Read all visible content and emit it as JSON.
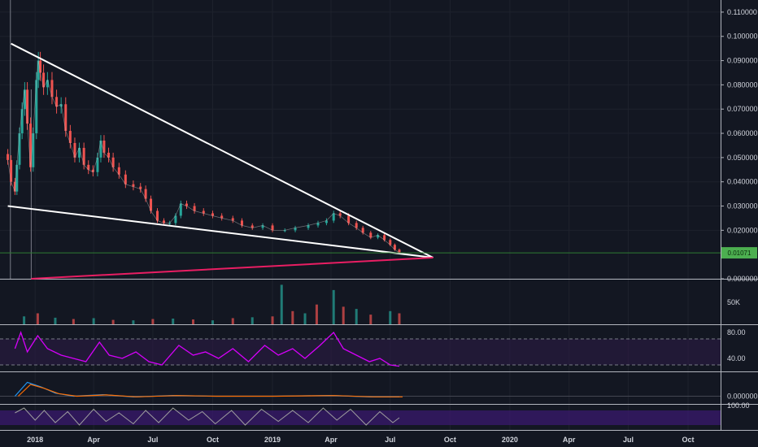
{
  "colors": {
    "background": "#131722",
    "grid": "#1e222d",
    "pane_border": "#b2b5be",
    "axis_text": "#d1d4dc",
    "candle_up": "#26a69a",
    "candle_down": "#ef5350",
    "trendline": "#ffffff",
    "support_line": "#e91e63",
    "price_marker": "#4caf50",
    "price_line": "#2e7d32",
    "rsi_line": "#d500f9",
    "rsi_band": "#2b1a45",
    "lower_band": "#3a1a6e",
    "macd_line": "#2196f3",
    "signal_line": "#ff6d00",
    "stoch_line": "#9e9e9e"
  },
  "chart_data": [
    {
      "type": "candlestick",
      "pane": "price",
      "y_ticks": [
        "0.110000",
        "0.100000",
        "0.090000",
        "0.080000",
        "0.070000",
        "0.060000",
        "0.050000",
        "0.040000",
        "0.030000",
        "0.020000",
        "0.000000"
      ],
      "ylim": [
        0,
        0.115
      ],
      "current_price_label": "0.01071",
      "current_price": 0.0107,
      "x_ticks": [
        "2018",
        "Apr",
        "Jul",
        "Oct",
        "2019",
        "Apr",
        "Jul",
        "Oct",
        "2020",
        "Apr",
        "Jul",
        "Oct"
      ],
      "series": [
        {
          "kind": "close",
          "points": [
            [
              "2017-11-20",
              0.049
            ],
            [
              "2017-11-25",
              0.04
            ],
            [
              "2017-12-01",
              0.036
            ],
            [
              "2017-12-04",
              0.047
            ],
            [
              "2017-12-08",
              0.06
            ],
            [
              "2017-12-12",
              0.07
            ],
            [
              "2017-12-16",
              0.078
            ],
            [
              "2017-12-20",
              0.064
            ],
            [
              "2017-12-25",
              0.046
            ],
            [
              "2017-12-29",
              0.06
            ],
            [
              "2018-01-03",
              0.082
            ],
            [
              "2018-01-06",
              0.09
            ],
            [
              "2018-01-09",
              0.085
            ],
            [
              "2018-01-14",
              0.079
            ],
            [
              "2018-01-20",
              0.082
            ],
            [
              "2018-01-27",
              0.075
            ],
            [
              "2018-02-03",
              0.071
            ],
            [
              "2018-02-10",
              0.072
            ],
            [
              "2018-02-17",
              0.061
            ],
            [
              "2018-02-24",
              0.056
            ],
            [
              "2018-03-03",
              0.05
            ],
            [
              "2018-03-10",
              0.054
            ],
            [
              "2018-03-17",
              0.047
            ],
            [
              "2018-03-24",
              0.045
            ],
            [
              "2018-03-31",
              0.044
            ],
            [
              "2018-04-07",
              0.05
            ],
            [
              "2018-04-12",
              0.057
            ],
            [
              "2018-04-17",
              0.052
            ],
            [
              "2018-04-24",
              0.05
            ],
            [
              "2018-05-01",
              0.046
            ],
            [
              "2018-05-10",
              0.043
            ],
            [
              "2018-05-20",
              0.039
            ],
            [
              "2018-06-01",
              0.038
            ],
            [
              "2018-06-12",
              0.037
            ],
            [
              "2018-06-20",
              0.033
            ],
            [
              "2018-06-28",
              0.028
            ],
            [
              "2018-07-08",
              0.024
            ],
            [
              "2018-07-18",
              0.023
            ],
            [
              "2018-07-27",
              0.023
            ],
            [
              "2018-08-05",
              0.026
            ],
            [
              "2018-08-13",
              0.031
            ],
            [
              "2018-08-22",
              0.03
            ],
            [
              "2018-09-03",
              0.028
            ],
            [
              "2018-09-17",
              0.027
            ],
            [
              "2018-10-01",
              0.026
            ],
            [
              "2018-10-15",
              0.025
            ],
            [
              "2018-11-01",
              0.024
            ],
            [
              "2018-11-15",
              0.022
            ],
            [
              "2018-12-01",
              0.021
            ],
            [
              "2018-12-17",
              0.022
            ],
            [
              "2019-01-01",
              0.02
            ],
            [
              "2019-01-20",
              0.02
            ],
            [
              "2019-02-05",
              0.021
            ],
            [
              "2019-02-25",
              0.022
            ],
            [
              "2019-03-12",
              0.023
            ],
            [
              "2019-03-25",
              0.024
            ],
            [
              "2019-04-05",
              0.027
            ],
            [
              "2019-04-15",
              0.026
            ],
            [
              "2019-04-28",
              0.023
            ],
            [
              "2019-05-10",
              0.021
            ],
            [
              "2019-05-20",
              0.019
            ],
            [
              "2019-06-01",
              0.017
            ],
            [
              "2019-06-12",
              0.018
            ],
            [
              "2019-06-22",
              0.016
            ],
            [
              "2019-07-01",
              0.014
            ],
            [
              "2019-07-08",
              0.012
            ],
            [
              "2019-07-15",
              0.0107
            ]
          ]
        }
      ],
      "trendlines": [
        {
          "name": "upper-resistance",
          "from": [
            "2017-11-25",
            0.097
          ],
          "to": [
            "2019-09-05",
            0.0087
          ]
        },
        {
          "name": "lower-support",
          "from": [
            "2017-11-20",
            0.03
          ],
          "to": [
            "2019-09-05",
            0.0087
          ]
        },
        {
          "name": "long-support",
          "from": [
            "2017-12-26",
            0.0
          ],
          "to": [
            "2019-09-05",
            0.0087
          ]
        }
      ]
    },
    {
      "type": "bar",
      "pane": "volume",
      "y_ticks": [
        "50K"
      ],
      "ylim": [
        0,
        100000
      ],
      "series": [
        {
          "name": "volume",
          "points": [
            [
              "2017-12-15",
              18000
            ],
            [
              "2018-01-05",
              25000
            ],
            [
              "2018-02-01",
              15000
            ],
            [
              "2018-03-01",
              12000
            ],
            [
              "2018-04-01",
              14000
            ],
            [
              "2018-05-01",
              10000
            ],
            [
              "2018-06-01",
              9000
            ],
            [
              "2018-07-01",
              12000
            ],
            [
              "2018-08-01",
              13000
            ],
            [
              "2018-09-01",
              11000
            ],
            [
              "2018-10-01",
              9000
            ],
            [
              "2018-11-01",
              14000
            ],
            [
              "2018-12-01",
              16000
            ],
            [
              "2019-01-01",
              18000
            ],
            [
              "2019-01-15",
              90000
            ],
            [
              "2019-02-01",
              30000
            ],
            [
              "2019-02-20",
              25000
            ],
            [
              "2019-03-10",
              45000
            ],
            [
              "2019-04-05",
              78000
            ],
            [
              "2019-04-20",
              40000
            ],
            [
              "2019-05-10",
              35000
            ],
            [
              "2019-06-01",
              22000
            ],
            [
              "2019-07-01",
              30000
            ],
            [
              "2019-07-15",
              25000
            ]
          ]
        }
      ]
    },
    {
      "type": "line",
      "pane": "rsi",
      "y_ticks": [
        "80.00",
        "40.00"
      ],
      "ylim": [
        20,
        90
      ],
      "band": [
        30,
        70
      ],
      "series": [
        {
          "points": [
            [
              "2017-12-01",
              55
            ],
            [
              "2017-12-10",
              80
            ],
            [
              "2017-12-20",
              50
            ],
            [
              "2018-01-05",
              75
            ],
            [
              "2018-01-20",
              55
            ],
            [
              "2018-02-10",
              45
            ],
            [
              "2018-03-01",
              40
            ],
            [
              "2018-03-20",
              35
            ],
            [
              "2018-04-10",
              65
            ],
            [
              "2018-04-25",
              45
            ],
            [
              "2018-05-15",
              40
            ],
            [
              "2018-06-05",
              50
            ],
            [
              "2018-06-25",
              35
            ],
            [
              "2018-07-15",
              30
            ],
            [
              "2018-08-10",
              60
            ],
            [
              "2018-09-01",
              45
            ],
            [
              "2018-09-20",
              50
            ],
            [
              "2018-10-10",
              40
            ],
            [
              "2018-11-01",
              55
            ],
            [
              "2018-11-25",
              35
            ],
            [
              "2018-12-20",
              60
            ],
            [
              "2019-01-10",
              45
            ],
            [
              "2019-02-01",
              55
            ],
            [
              "2019-02-20",
              40
            ],
            [
              "2019-03-15",
              60
            ],
            [
              "2019-04-05",
              80
            ],
            [
              "2019-04-20",
              55
            ],
            [
              "2019-05-10",
              45
            ],
            [
              "2019-05-30",
              35
            ],
            [
              "2019-06-15",
              40
            ],
            [
              "2019-07-01",
              30
            ],
            [
              "2019-07-15",
              28
            ]
          ]
        }
      ]
    },
    {
      "type": "line",
      "pane": "macd",
      "y_ticks": [
        "0.000000"
      ],
      "ylim": [
        -0.01,
        0.03
      ],
      "series": [
        {
          "points": [
            [
              "2017-12-01",
              0.0
            ],
            [
              "2017-12-20",
              0.018
            ],
            [
              "2018-01-10",
              0.012
            ],
            [
              "2018-02-01",
              0.004
            ],
            [
              "2018-03-01",
              0.0
            ],
            [
              "2018-04-15",
              0.002
            ],
            [
              "2018-06-01",
              -0.001
            ],
            [
              "2018-08-01",
              0.001
            ],
            [
              "2018-10-01",
              0.0
            ],
            [
              "2019-01-01",
              0.0
            ],
            [
              "2019-04-01",
              0.001
            ],
            [
              "2019-06-01",
              -0.001
            ],
            [
              "2019-07-15",
              -0.001
            ]
          ]
        }
      ]
    },
    {
      "type": "line",
      "pane": "stochastic",
      "y_ticks": [
        "100.00"
      ],
      "ylim": [
        0,
        100
      ],
      "series": [
        {
          "points": [
            [
              "2017-12-01",
              70
            ],
            [
              "2017-12-15",
              90
            ],
            [
              "2018-01-01",
              40
            ],
            [
              "2018-01-15",
              80
            ],
            [
              "2018-02-01",
              30
            ],
            [
              "2018-02-20",
              75
            ],
            [
              "2018-03-10",
              20
            ],
            [
              "2018-04-01",
              85
            ],
            [
              "2018-04-20",
              35
            ],
            [
              "2018-05-10",
              70
            ],
            [
              "2018-06-01",
              25
            ],
            [
              "2018-06-20",
              80
            ],
            [
              "2018-07-10",
              30
            ],
            [
              "2018-08-01",
              90
            ],
            [
              "2018-08-25",
              40
            ],
            [
              "2018-09-15",
              75
            ],
            [
              "2018-10-05",
              25
            ],
            [
              "2018-10-30",
              80
            ],
            [
              "2018-11-20",
              20
            ],
            [
              "2018-12-15",
              85
            ],
            [
              "2019-01-10",
              35
            ],
            [
              "2019-02-01",
              80
            ],
            [
              "2019-02-25",
              30
            ],
            [
              "2019-03-20",
              90
            ],
            [
              "2019-04-10",
              40
            ],
            [
              "2019-05-01",
              85
            ],
            [
              "2019-05-25",
              20
            ],
            [
              "2019-06-15",
              75
            ],
            [
              "2019-07-05",
              30
            ],
            [
              "2019-07-15",
              50
            ]
          ]
        }
      ]
    }
  ]
}
